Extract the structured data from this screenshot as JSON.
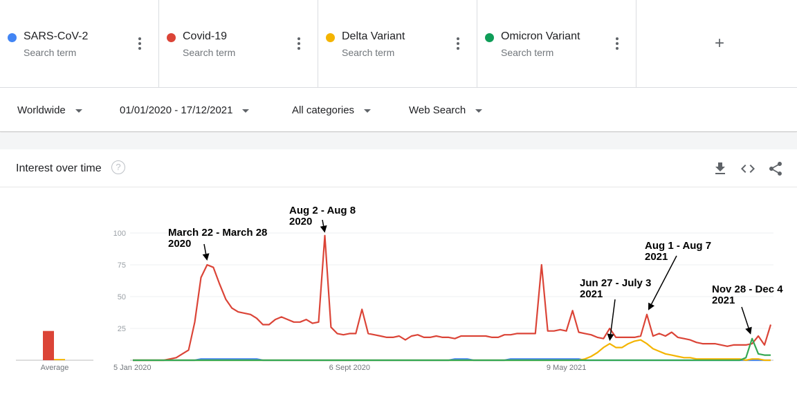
{
  "terms": [
    {
      "name": "SARS-CoV-2",
      "subtitle": "Search term",
      "color": "#4285f4"
    },
    {
      "name": "Covid-19",
      "subtitle": "Search term",
      "color": "#db4437"
    },
    {
      "name": "Delta Variant",
      "subtitle": "Search term",
      "color": "#f4b400"
    },
    {
      "name": "Omicron Variant",
      "subtitle": "Search term",
      "color": "#0f9d58"
    }
  ],
  "add_term_symbol": "+",
  "filters": {
    "region": "Worldwide",
    "date_range": "01/01/2020 - 17/12/2021",
    "category": "All categories",
    "search_type": "Web Search"
  },
  "card": {
    "title": "Interest over time",
    "help_symbol": "?",
    "icons": [
      "download-icon",
      "embed-code-icon",
      "share-icon"
    ]
  },
  "chart_data": {
    "type": "line",
    "ylim": [
      0,
      100
    ],
    "yticks": [
      25,
      50,
      75,
      100
    ],
    "xtick_labels": [
      "5 Jan 2020",
      "6 Sept 2020",
      "9 May 2021"
    ],
    "average_label": "Average",
    "averages": {
      "SARS-CoV-2": 0,
      "Covid-19": 23,
      "Delta Variant": 1,
      "Omicron Variant": 0
    },
    "series": [
      {
        "name": "Covid-19",
        "color": "#db4437",
        "values": [
          0,
          0,
          0,
          0,
          0,
          0,
          1,
          2,
          5,
          8,
          30,
          65,
          75,
          73,
          60,
          48,
          41,
          38,
          37,
          36,
          33,
          28,
          28,
          32,
          34,
          32,
          30,
          30,
          32,
          29,
          30,
          98,
          26,
          21,
          20,
          21,
          21,
          40,
          21,
          20,
          19,
          18,
          18,
          19,
          16,
          19,
          20,
          18,
          18,
          19,
          18,
          18,
          17,
          19,
          19,
          19,
          19,
          19,
          18,
          18,
          20,
          20,
          21,
          21,
          21,
          21,
          75,
          23,
          23,
          24,
          23,
          39,
          22,
          21,
          20,
          18,
          17,
          25,
          18,
          18,
          18,
          18,
          19,
          36,
          19,
          21,
          19,
          22,
          18,
          17,
          16,
          14,
          13,
          13,
          13,
          12,
          11,
          12,
          12,
          12,
          13,
          19,
          12,
          28
        ]
      },
      {
        "name": "SARS-CoV-2",
        "color": "#4285f4",
        "values": [
          0,
          0,
          0,
          0,
          0,
          0,
          0,
          0,
          0,
          0,
          0,
          1,
          1,
          1,
          1,
          1,
          1,
          1,
          1,
          1,
          1,
          0,
          0,
          0,
          0,
          0,
          0,
          0,
          0,
          0,
          0,
          0,
          0,
          0,
          0,
          0,
          0,
          0,
          0,
          0,
          0,
          0,
          0,
          0,
          0,
          0,
          0,
          0,
          0,
          0,
          0,
          0,
          1,
          1,
          1,
          0,
          0,
          0,
          0,
          0,
          0,
          1,
          1,
          1,
          1,
          1,
          1,
          1,
          1,
          1,
          1,
          1,
          1,
          0,
          0,
          0,
          0,
          0,
          0,
          0,
          0,
          0,
          0,
          0,
          0,
          0,
          0,
          0,
          0,
          0,
          0,
          0,
          0,
          0,
          0,
          0,
          0,
          0,
          0,
          0,
          0,
          0,
          0,
          0
        ]
      },
      {
        "name": "Delta Variant",
        "color": "#f4b400",
        "values": [
          0,
          0,
          0,
          0,
          0,
          0,
          0,
          0,
          0,
          0,
          0,
          0,
          0,
          0,
          0,
          0,
          0,
          0,
          0,
          0,
          0,
          0,
          0,
          0,
          0,
          0,
          0,
          0,
          0,
          0,
          0,
          0,
          0,
          0,
          0,
          0,
          0,
          0,
          0,
          0,
          0,
          0,
          0,
          0,
          0,
          0,
          0,
          0,
          0,
          0,
          0,
          0,
          0,
          0,
          0,
          0,
          0,
          0,
          0,
          0,
          0,
          0,
          0,
          0,
          0,
          0,
          0,
          0,
          0,
          0,
          0,
          0,
          0,
          1,
          3,
          6,
          10,
          13,
          10,
          10,
          13,
          15,
          16,
          13,
          9,
          7,
          5,
          4,
          3,
          2,
          2,
          1,
          1,
          1,
          1,
          1,
          1,
          1,
          1,
          0,
          1,
          1,
          0,
          0
        ]
      },
      {
        "name": "Omicron Variant",
        "color": "#34a853",
        "values": [
          0,
          0,
          0,
          0,
          0,
          0,
          0,
          0,
          0,
          0,
          0,
          0,
          0,
          0,
          0,
          0,
          0,
          0,
          0,
          0,
          0,
          0,
          0,
          0,
          0,
          0,
          0,
          0,
          0,
          0,
          0,
          0,
          0,
          0,
          0,
          0,
          0,
          0,
          0,
          0,
          0,
          0,
          0,
          0,
          0,
          0,
          0,
          0,
          0,
          0,
          0,
          0,
          0,
          0,
          0,
          0,
          0,
          0,
          0,
          0,
          0,
          0,
          0,
          0,
          0,
          0,
          0,
          0,
          0,
          0,
          0,
          0,
          0,
          0,
          0,
          0,
          0,
          0,
          0,
          0,
          0,
          0,
          0,
          0,
          0,
          0,
          0,
          0,
          0,
          0,
          0,
          0,
          0,
          0,
          0,
          0,
          0,
          0,
          0,
          2,
          17,
          5,
          4,
          4
        ]
      }
    ],
    "annotations": [
      {
        "lines": [
          "March 22 - March 28",
          "2020"
        ],
        "series": "Covid-19",
        "index": 12
      },
      {
        "lines": [
          "Aug 2 - Aug 8",
          "2020"
        ],
        "series": "Covid-19",
        "index": 31
      },
      {
        "lines": [
          "Jun 27 - July 3",
          "2021"
        ],
        "series": "Delta Variant",
        "index": 77
      },
      {
        "lines": [
          "Aug 1 - Aug 7",
          "2021"
        ],
        "series": "Covid-19",
        "index": 83
      },
      {
        "lines": [
          "Nov 28 - Dec 4",
          "2021"
        ],
        "series": "Omicron Variant",
        "index": 100
      }
    ]
  }
}
